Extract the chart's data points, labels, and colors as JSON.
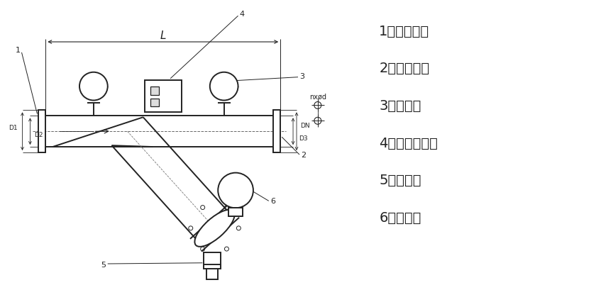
{
  "bg_color": "#ffffff",
  "line_color": "#222222",
  "label_color": "#222222",
  "legend_items": [
    "1、口端法兰",
    "2、口端法兰",
    "3、压力表",
    "4、差压控制器",
    "5、排污阀",
    "6、减速机"
  ],
  "fig_width": 8.4,
  "fig_height": 4.33,
  "dpi": 100
}
